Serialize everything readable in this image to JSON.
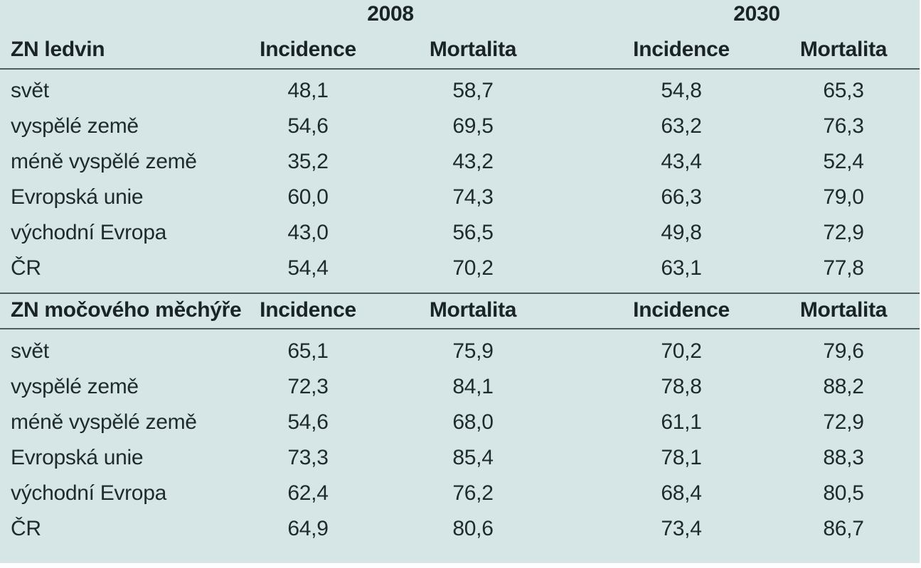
{
  "years": [
    "2008",
    "2030"
  ],
  "columns": [
    "Incidence",
    "Mortalita",
    "Incidence",
    "Mortalita"
  ],
  "sections": [
    {
      "title": "ZN ledvin",
      "rows": [
        {
          "label": "svět",
          "values": [
            "48,1",
            "58,7",
            "54,8",
            "65,3"
          ]
        },
        {
          "label": "vyspělé země",
          "values": [
            "54,6",
            "69,5",
            "63,2",
            "76,3"
          ]
        },
        {
          "label": "méně vyspělé země",
          "values": [
            "35,2",
            "43,2",
            "43,4",
            "52,4"
          ]
        },
        {
          "label": "Evropská unie",
          "values": [
            "60,0",
            "74,3",
            "66,3",
            "79,0"
          ]
        },
        {
          "label": "východní Evropa",
          "values": [
            "43,0",
            "56,5",
            "49,8",
            "72,9"
          ]
        },
        {
          "label": "ČR",
          "values": [
            "54,4",
            "70,2",
            "63,1",
            "77,8"
          ]
        }
      ]
    },
    {
      "title": "ZN močového měchýře",
      "rows": [
        {
          "label": "svět",
          "values": [
            "65,1",
            "75,9",
            "70,2",
            "79,6"
          ]
        },
        {
          "label": "vyspělé země",
          "values": [
            "72,3",
            "84,1",
            "78,8",
            "88,2"
          ]
        },
        {
          "label": "méně vyspělé země",
          "values": [
            "54,6",
            "68,0",
            "61,1",
            "72,9"
          ]
        },
        {
          "label": "Evropská unie",
          "values": [
            "73,3",
            "85,4",
            "78,1",
            "88,3"
          ]
        },
        {
          "label": "východní Evropa",
          "values": [
            "62,4",
            "76,2",
            "68,4",
            "80,5"
          ]
        },
        {
          "label": "ČR",
          "values": [
            "64,9",
            "80,6",
            "73,4",
            "86,7"
          ]
        }
      ]
    }
  ]
}
